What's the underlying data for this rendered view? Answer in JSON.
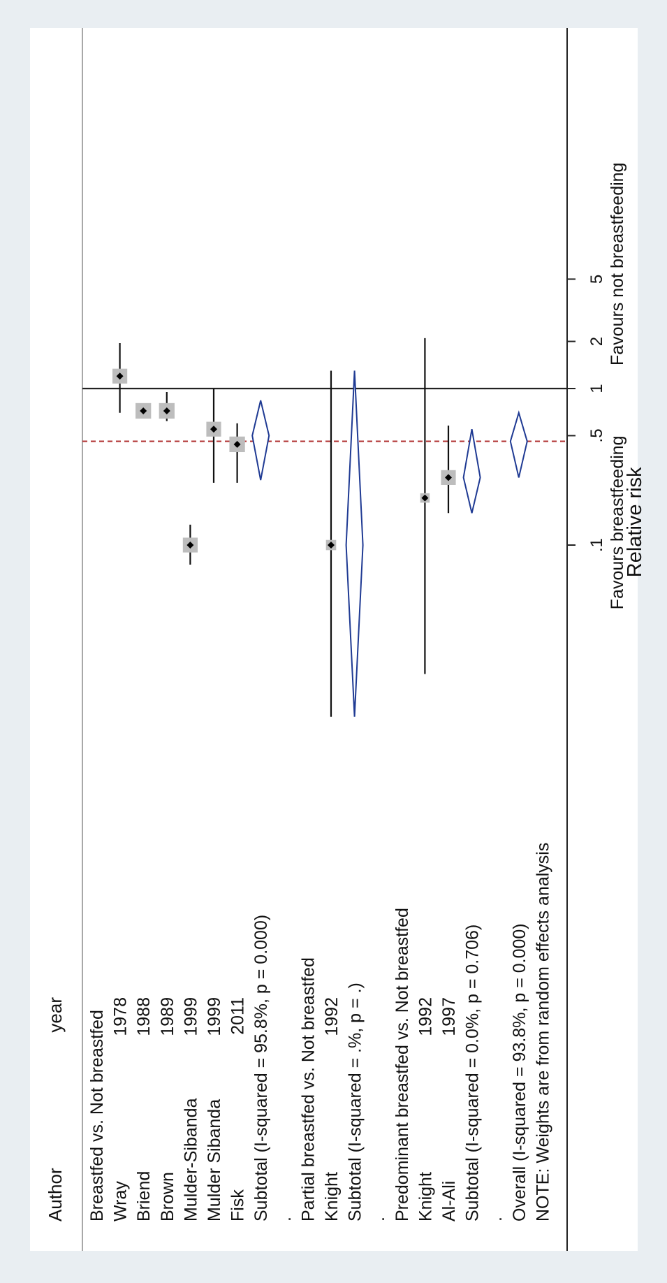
{
  "chart_data": {
    "type": "forest",
    "scale": "log",
    "xlabel": "Relative risk",
    "favours_left": "Favours breastfeeding",
    "favours_right": "Favours not breastfeeding",
    "ticks": [
      {
        "label": ".1",
        "value": 0.1
      },
      {
        "label": ".5",
        "value": 0.5
      },
      {
        "label": "1",
        "value": 1
      },
      {
        "label": "2",
        "value": 2
      },
      {
        "label": "5",
        "value": 5
      }
    ],
    "xlim": [
      0.01,
      100
    ],
    "null_line": 1,
    "overall_line": 0.46,
    "headers": {
      "author": "Author",
      "year": "year"
    },
    "note": "NOTE: Weights are from random effects analysis",
    "rows": [
      {
        "kind": "group",
        "text": "Breastfed vs. Not breastfed"
      },
      {
        "kind": "study",
        "author": "Wray",
        "year": "1978",
        "rr": 1.2,
        "lo": 0.7,
        "hi": 1.95,
        "weight": 12
      },
      {
        "kind": "study",
        "author": "Briend",
        "year": "1988",
        "rr": 0.72,
        "lo": 0.72,
        "hi": 0.72,
        "weight": 13
      },
      {
        "kind": "study",
        "author": "Brown",
        "year": "1989",
        "rr": 0.72,
        "lo": 0.62,
        "hi": 0.95,
        "weight": 13
      },
      {
        "kind": "study",
        "author": "Mulder-Sibanda",
        "year": "1999",
        "rr": 0.1,
        "lo": 0.075,
        "hi": 0.135,
        "weight": 12
      },
      {
        "kind": "study",
        "author": "Mulder Sibanda",
        "year": "1999",
        "rr": 0.55,
        "lo": 0.25,
        "hi": 1.0,
        "weight": 12
      },
      {
        "kind": "study",
        "author": "Fisk",
        "year": "2011",
        "rr": 0.44,
        "lo": 0.25,
        "hi": 0.6,
        "weight": 13
      },
      {
        "kind": "subtotal",
        "text": "Subtotal  (I-squared = 95.8%, p = 0.000)",
        "rr": 0.5,
        "lo": 0.26,
        "hi": 0.84
      },
      {
        "kind": "blank",
        "text": "."
      },
      {
        "kind": "group",
        "text": "Partial breastfed vs. Not breastfed"
      },
      {
        "kind": "study",
        "author": "Knight",
        "year": "1992",
        "rr": 0.1,
        "lo": 0.008,
        "hi": 1.3,
        "weight": 6
      },
      {
        "kind": "subtotal",
        "text": "Subtotal  (I-squared = .%, p = .)",
        "rr": 0.1,
        "lo": 0.008,
        "hi": 1.3
      },
      {
        "kind": "blank",
        "text": "."
      },
      {
        "kind": "group",
        "text": "Predominant breastfed vs. Not breastfed"
      },
      {
        "kind": "study",
        "author": "Knight",
        "year": "1992",
        "rr": 0.2,
        "lo": 0.015,
        "hi": 2.1,
        "weight": 5
      },
      {
        "kind": "study",
        "author": "Al-Ali",
        "year": "1997",
        "rr": 0.27,
        "lo": 0.16,
        "hi": 0.58,
        "weight": 12
      },
      {
        "kind": "subtotal",
        "text": "Subtotal  (I-squared = 0.0%, p = 0.706)",
        "rr": 0.27,
        "lo": 0.16,
        "hi": 0.55
      },
      {
        "kind": "blank",
        "text": "."
      },
      {
        "kind": "overall",
        "text": "Overall  (I-squared = 93.8%, p = 0.000)",
        "rr": 0.46,
        "lo": 0.27,
        "hi": 0.7
      }
    ]
  }
}
